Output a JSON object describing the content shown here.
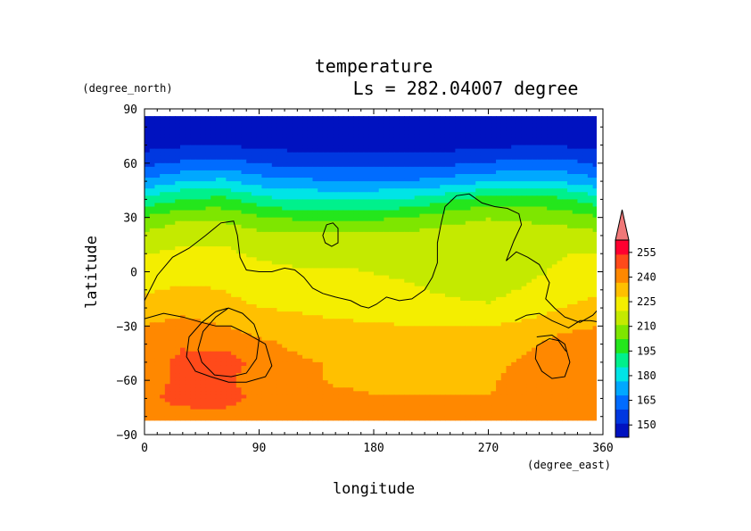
{
  "chart_data": {
    "type": "heatmap",
    "title": "temperature",
    "subtitle": "Ls = 282.04007 degree",
    "xlabel": "longitude",
    "ylabel": "latitude",
    "x_unit": "(degree_east)",
    "y_unit": "(degree_north)",
    "xlim": [
      0,
      360
    ],
    "ylim": [
      -90,
      90
    ],
    "x_ticks": [
      "0",
      "90",
      "180",
      "270",
      "360"
    ],
    "y_ticks": [
      "90",
      "60",
      "30",
      "0",
      "−30",
      "−60",
      "−90"
    ],
    "colorbar": {
      "levels": [
        150,
        165,
        180,
        195,
        210,
        225,
        240,
        255
      ],
      "labels": [
        "150",
        "165",
        "180",
        "195",
        "210",
        "225",
        "240",
        "255"
      ],
      "extend": "max"
    },
    "grid": {
      "lon": [
        0,
        30,
        60,
        90,
        120,
        150,
        180,
        210,
        240,
        270,
        300,
        330,
        360
      ],
      "lat": [
        86,
        70,
        60,
        50,
        40,
        30,
        20,
        10,
        0,
        -10,
        -20,
        -30,
        -40,
        -50,
        -60,
        -70,
        -82
      ],
      "temperature_K": [
        [
          146,
          146,
          146,
          146,
          146,
          146,
          146,
          146,
          146,
          146,
          146,
          146,
          146
        ],
        [
          150,
          152,
          153,
          151,
          150,
          150,
          150,
          150,
          150,
          151,
          152,
          152,
          150
        ],
        [
          158,
          162,
          164,
          160,
          158,
          158,
          158,
          158,
          159,
          161,
          164,
          163,
          158
        ],
        [
          170,
          176,
          178,
          172,
          170,
          169,
          169,
          169,
          172,
          175,
          177,
          175,
          170
        ],
        [
          186,
          192,
          194,
          187,
          183,
          183,
          183,
          185,
          190,
          196,
          196,
          193,
          186
        ],
        [
          200,
          206,
          206,
          201,
          198,
          198,
          198,
          200,
          205,
          207,
          206,
          204,
          200
        ],
        [
          210,
          213,
          213,
          210,
          209,
          209,
          209,
          210,
          211,
          211,
          211,
          211,
          210
        ],
        [
          215,
          217,
          217,
          214,
          213,
          213,
          213,
          213,
          211,
          211,
          212,
          215,
          215
        ],
        [
          218,
          220,
          220,
          217,
          216,
          216,
          215,
          214,
          212,
          211,
          213,
          217,
          218
        ],
        [
          222,
          224,
          223,
          220,
          219,
          218,
          217,
          216,
          214,
          213,
          216,
          220,
          222
        ],
        [
          226,
          228,
          226,
          223,
          222,
          220,
          219,
          218,
          217,
          216,
          219,
          223,
          226
        ],
        [
          231,
          234,
          231,
          227,
          226,
          225,
          224,
          223,
          223,
          223,
          225,
          229,
          231
        ],
        [
          235,
          238,
          237,
          233,
          229,
          227,
          226,
          226,
          226,
          226,
          229,
          234,
          235
        ],
        [
          236,
          240,
          242,
          237,
          232,
          230,
          229,
          229,
          229,
          229,
          232,
          236,
          236
        ],
        [
          236,
          240,
          240,
          236,
          233,
          230,
          230,
          230,
          230,
          230,
          233,
          236,
          236
        ],
        [
          237,
          241,
          242,
          237,
          232,
          232,
          231,
          231,
          231,
          231,
          232,
          234,
          237
        ],
        [
          234,
          235,
          235,
          233,
          232,
          232,
          232,
          232,
          232,
          232,
          232,
          233,
          234
        ]
      ],
      "contour_lines": [
        [
          [
            0,
            -16
          ],
          [
            10,
            -2
          ],
          [
            22,
            8
          ],
          [
            35,
            13
          ],
          [
            48,
            20
          ],
          [
            60,
            27
          ],
          [
            70,
            28
          ],
          [
            73,
            20
          ],
          [
            75,
            8
          ],
          [
            80,
            1
          ],
          [
            90,
            0
          ],
          [
            100,
            0
          ],
          [
            110,
            2
          ],
          [
            118,
            1
          ],
          [
            125,
            -3
          ],
          [
            132,
            -9
          ],
          [
            140,
            -12
          ],
          [
            150,
            -14
          ],
          [
            162,
            -16
          ],
          [
            170,
            -19
          ],
          [
            176,
            -20
          ],
          [
            182,
            -18
          ],
          [
            190,
            -14
          ],
          [
            200,
            -16
          ],
          [
            210,
            -15
          ],
          [
            220,
            -10
          ],
          [
            226,
            -3
          ],
          [
            230,
            5
          ],
          [
            230,
            16
          ],
          [
            233,
            27
          ],
          [
            236,
            36
          ],
          [
            245,
            42
          ],
          [
            255,
            43
          ],
          [
            265,
            38
          ],
          [
            275,
            36
          ],
          [
            285,
            35
          ],
          [
            294,
            32
          ],
          [
            296,
            26
          ],
          [
            290,
            17
          ],
          [
            284,
            6
          ],
          [
            292,
            11
          ],
          [
            301,
            8
          ],
          [
            310,
            4
          ],
          [
            318,
            -6
          ],
          [
            315,
            -15
          ],
          [
            322,
            -20
          ],
          [
            330,
            -25
          ],
          [
            342,
            -28
          ],
          [
            352,
            -24
          ],
          [
            360,
            -18
          ]
        ],
        [
          [
            143,
            26
          ],
          [
            148,
            27
          ],
          [
            152,
            24
          ],
          [
            152,
            16
          ],
          [
            147,
            14
          ],
          [
            142,
            16
          ],
          [
            140,
            20
          ],
          [
            143,
            26
          ]
        ],
        [
          [
            0,
            -26
          ],
          [
            15,
            -23
          ],
          [
            30,
            -25
          ],
          [
            45,
            -28
          ],
          [
            56,
            -30
          ],
          [
            68,
            -30
          ],
          [
            80,
            -34
          ],
          [
            95,
            -40
          ],
          [
            100,
            -52
          ],
          [
            95,
            -58
          ],
          [
            80,
            -61
          ],
          [
            66,
            -61
          ],
          [
            52,
            -58
          ],
          [
            40,
            -55
          ],
          [
            33,
            -47
          ],
          [
            35,
            -36
          ],
          [
            45,
            -28
          ],
          [
            56,
            -22
          ],
          [
            66,
            -20
          ],
          [
            77,
            -23
          ],
          [
            86,
            -29
          ],
          [
            90,
            -37
          ],
          [
            88,
            -48
          ],
          [
            80,
            -56
          ],
          [
            68,
            -58
          ],
          [
            55,
            -57
          ],
          [
            45,
            -50
          ],
          [
            42,
            -43
          ],
          [
            46,
            -33
          ],
          [
            56,
            -25
          ],
          [
            66,
            -20
          ]
        ],
        [
          [
            308,
            -36
          ],
          [
            320,
            -35
          ],
          [
            330,
            -40
          ],
          [
            334,
            -50
          ],
          [
            330,
            -58
          ],
          [
            320,
            -59
          ],
          [
            312,
            -55
          ],
          [
            307,
            -48
          ],
          [
            308,
            -41
          ],
          [
            318,
            -37
          ],
          [
            325,
            -38
          ],
          [
            331,
            -44
          ]
        ],
        [
          [
            291,
            -27
          ],
          [
            300,
            -24
          ],
          [
            310,
            -23
          ],
          [
            320,
            -27
          ],
          [
            333,
            -31
          ],
          [
            342,
            -27
          ],
          [
            350,
            -27
          ],
          [
            360,
            -28
          ]
        ]
      ]
    }
  }
}
